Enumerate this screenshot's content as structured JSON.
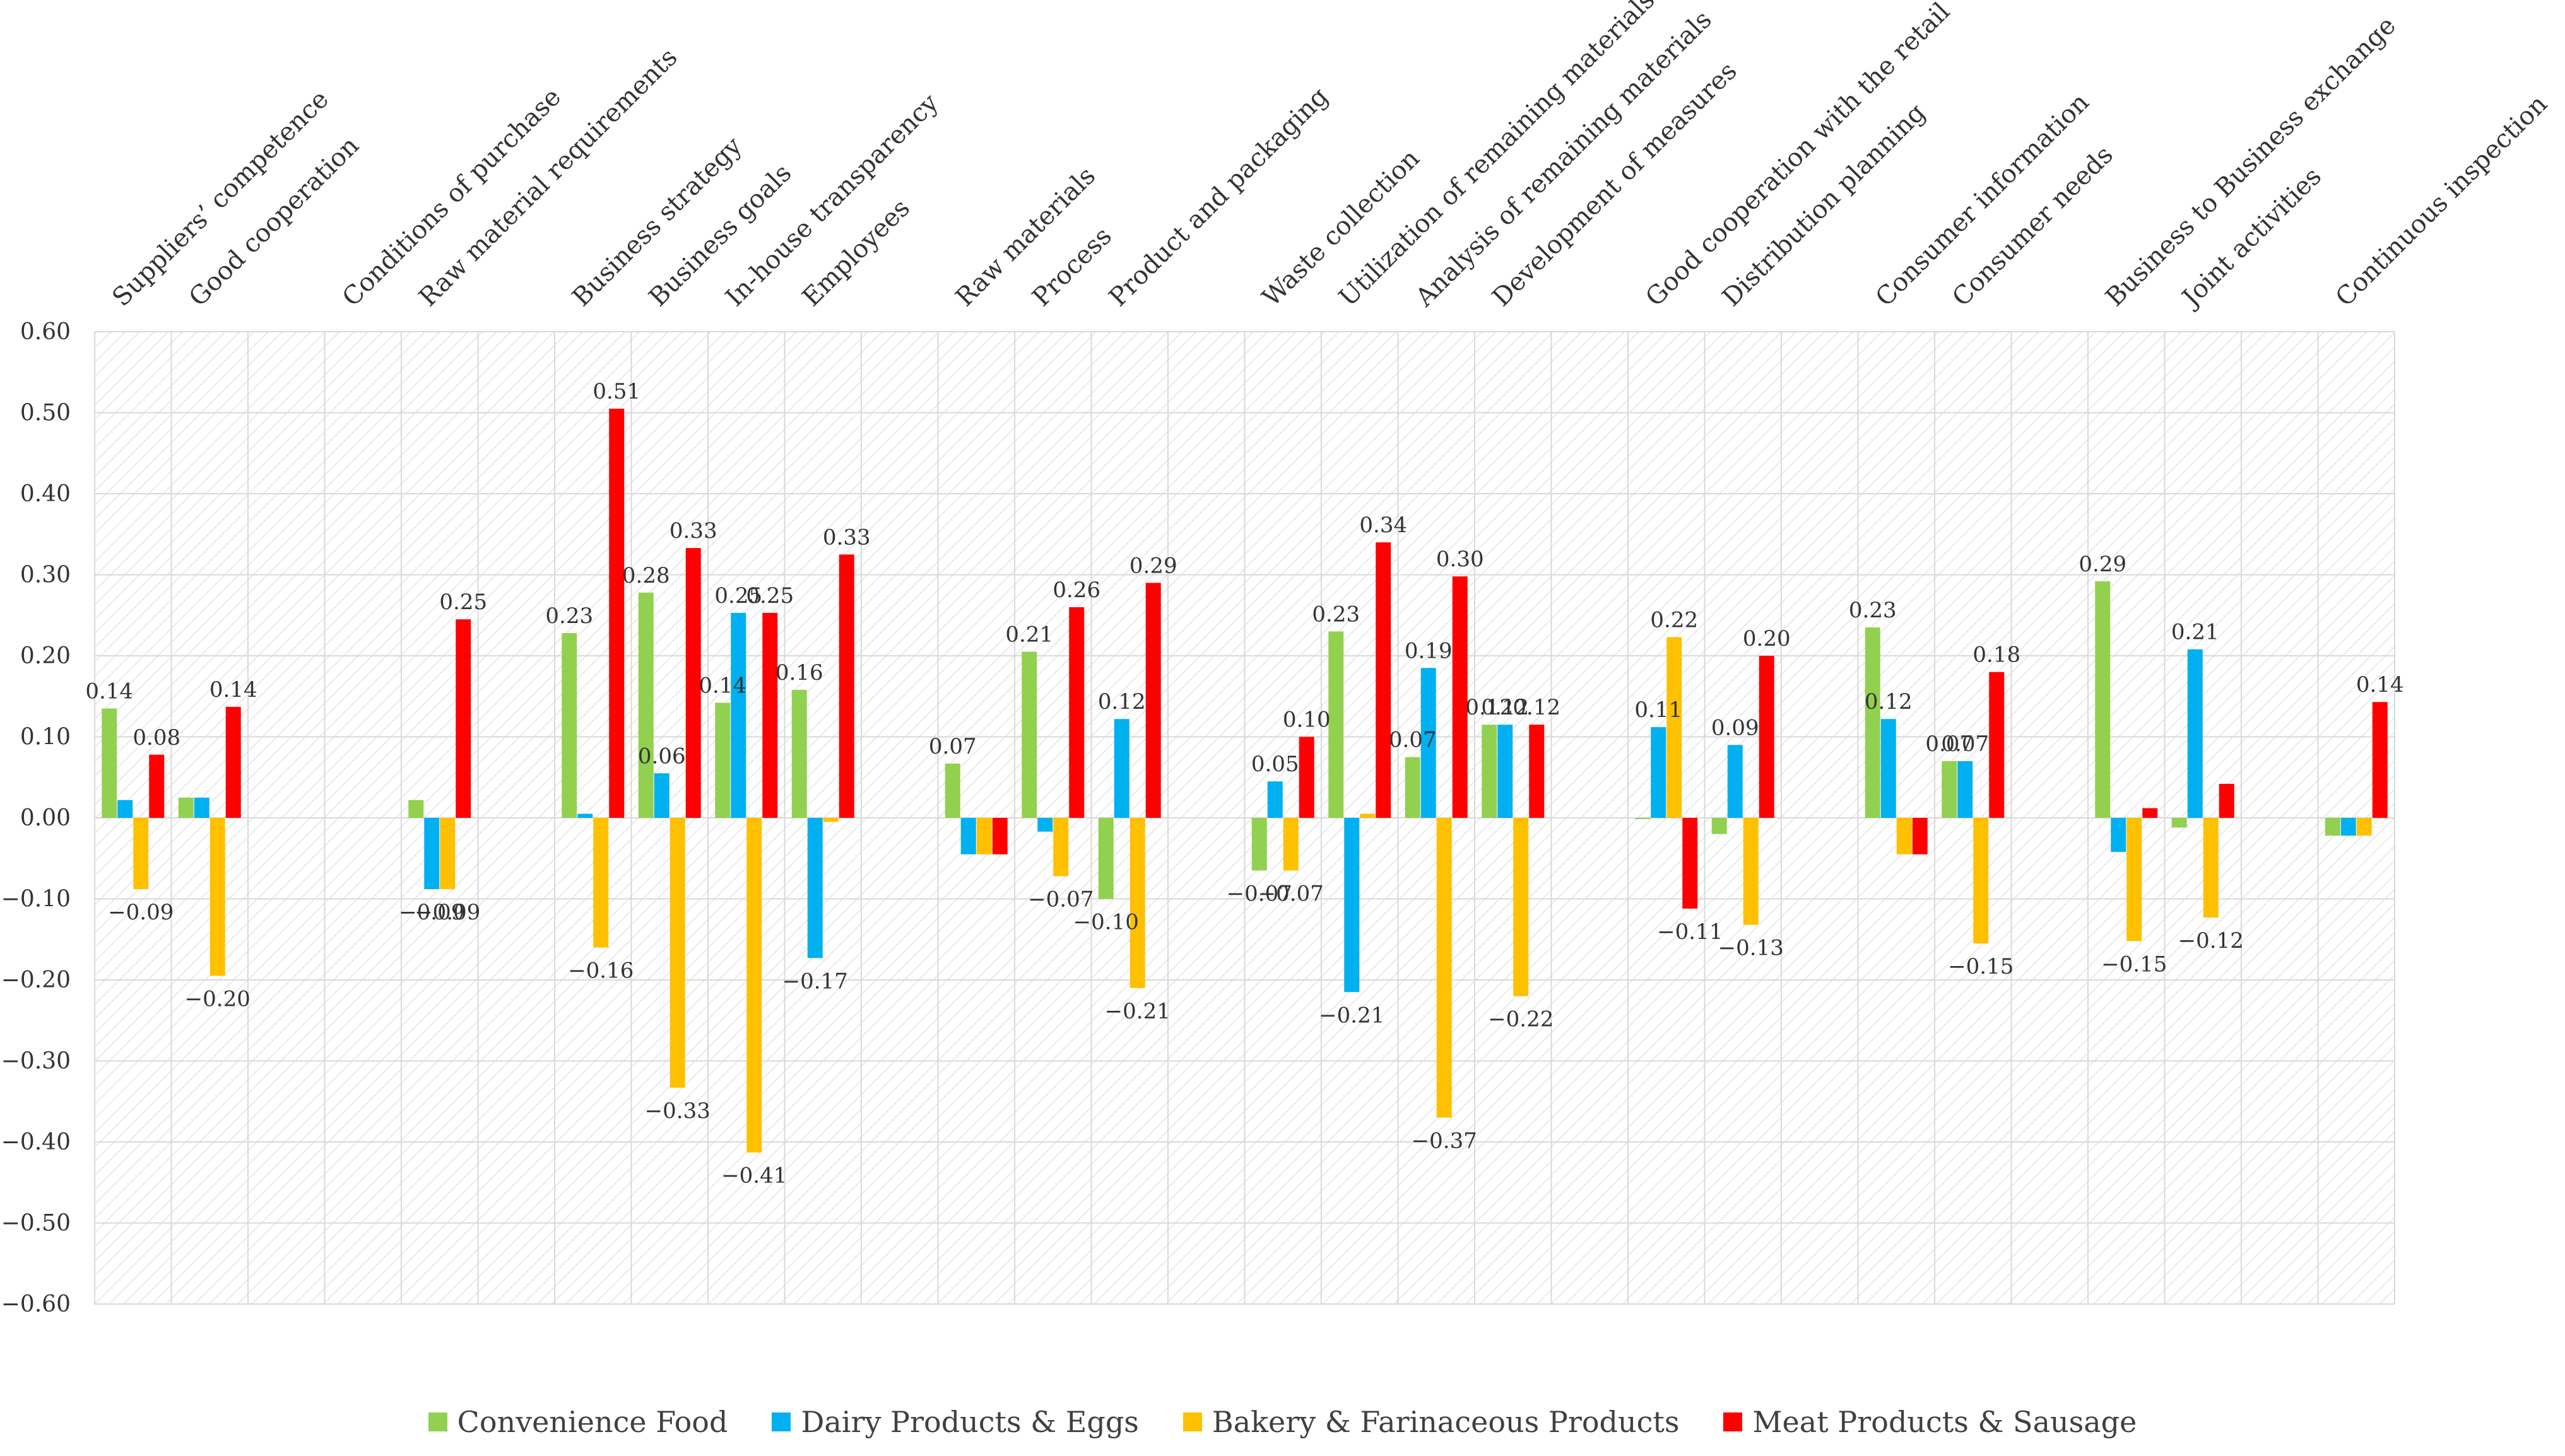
{
  "chart_data": {
    "type": "bar",
    "title": "",
    "xlabel": "",
    "ylabel": "",
    "ylim": [
      -0.6,
      0.6
    ],
    "ytick_labels": [
      "0.60",
      "0.50",
      "0.40",
      "0.30",
      "0.20",
      "0.10",
      "0.00",
      "−0.10",
      "−0.20",
      "−0.30",
      "−0.40",
      "−0.50",
      "−0.60"
    ],
    "categories": [
      "Suppliers’ competence",
      "Good cooperation",
      "",
      "Conditions of purchase",
      "Raw material requirements",
      "",
      "Business strategy",
      "Business goals",
      "In-house transparency",
      "Employees",
      "",
      "Raw materials",
      "Process",
      "Product and packaging",
      "",
      "Waste collection",
      "Utilization of remaining materials",
      "Analysis of remaining materials",
      "Development of measures",
      "",
      "Good cooperation with the retail",
      "Distribution planning",
      "",
      "Consumer information",
      "Consumer needs",
      "",
      "Business to Business exchange",
      "Joint activities",
      "",
      "Continuous inspection"
    ],
    "series": [
      {
        "name": "Convenience Food",
        "color": "#92D050",
        "values": [
          0.135,
          0.025,
          null,
          null,
          0.022,
          null,
          0.228,
          0.278,
          0.142,
          0.158,
          null,
          0.067,
          0.205,
          -0.1,
          null,
          -0.065,
          0.23,
          0.075,
          0.115,
          null,
          0.0,
          -0.02,
          null,
          0.235,
          0.07,
          null,
          0.292,
          -0.012,
          null,
          -0.022
        ]
      },
      {
        "name": "Dairy Products & Eggs",
        "color": "#00B0F0",
        "values": [
          0.022,
          0.025,
          null,
          null,
          -0.088,
          null,
          0.005,
          0.055,
          0.253,
          -0.173,
          null,
          -0.045,
          -0.017,
          0.122,
          null,
          0.045,
          -0.215,
          0.185,
          0.115,
          null,
          0.112,
          0.09,
          null,
          0.122,
          0.07,
          null,
          -0.042,
          0.208,
          null,
          -0.022
        ]
      },
      {
        "name": "Bakery & Farinaceous Products",
        "color": "#FFC000",
        "values": [
          -0.088,
          -0.195,
          null,
          null,
          -0.088,
          null,
          -0.16,
          -0.333,
          -0.413,
          -0.005,
          null,
          -0.045,
          -0.072,
          -0.21,
          null,
          -0.065,
          0.005,
          -0.37,
          -0.22,
          null,
          0.223,
          -0.132,
          null,
          -0.045,
          -0.155,
          null,
          -0.152,
          -0.123,
          null,
          -0.022
        ]
      },
      {
        "name": "Meat Products & Sausage",
        "color": "#FF0000",
        "values": [
          0.078,
          0.137,
          null,
          null,
          0.245,
          null,
          0.505,
          0.333,
          0.253,
          0.325,
          null,
          -0.045,
          0.26,
          0.29,
          null,
          0.1,
          0.34,
          0.298,
          0.115,
          null,
          -0.112,
          0.2,
          null,
          -0.045,
          0.18,
          null,
          0.012,
          0.042,
          null,
          0.143
        ]
      }
    ],
    "data_labels": [
      {
        "cat": 0,
        "s": 0,
        "text": "0.14"
      },
      {
        "cat": 0,
        "s": 2,
        "text": "−0.09"
      },
      {
        "cat": 0,
        "s": 3,
        "text": "0.08"
      },
      {
        "cat": 1,
        "s": 2,
        "text": "−0.20"
      },
      {
        "cat": 1,
        "s": 3,
        "text": "0.14"
      },
      {
        "cat": 4,
        "s": 1,
        "text": "−0.09"
      },
      {
        "cat": 4,
        "s": 2,
        "text": "−0.09"
      },
      {
        "cat": 4,
        "s": 3,
        "text": "0.25"
      },
      {
        "cat": 6,
        "s": 0,
        "text": "0.23"
      },
      {
        "cat": 6,
        "s": 2,
        "text": "−0.16"
      },
      {
        "cat": 6,
        "s": 3,
        "text": "0.51"
      },
      {
        "cat": 7,
        "s": 0,
        "text": "0.28"
      },
      {
        "cat": 7,
        "s": 1,
        "text": "0.06"
      },
      {
        "cat": 7,
        "s": 2,
        "text": "−0.33"
      },
      {
        "cat": 7,
        "s": 3,
        "text": "0.33"
      },
      {
        "cat": 8,
        "s": 0,
        "text": "0.14"
      },
      {
        "cat": 8,
        "s": 1,
        "text": "0.25"
      },
      {
        "cat": 8,
        "s": 2,
        "text": "−0.41"
      },
      {
        "cat": 8,
        "s": 3,
        "text": "0.25"
      },
      {
        "cat": 9,
        "s": 0,
        "text": "0.16"
      },
      {
        "cat": 9,
        "s": 1,
        "text": "−0.17"
      },
      {
        "cat": 9,
        "s": 3,
        "text": "0.33"
      },
      {
        "cat": 11,
        "s": 0,
        "text": "0.07"
      },
      {
        "cat": 12,
        "s": 0,
        "text": "0.21"
      },
      {
        "cat": 12,
        "s": 2,
        "text": "−0.07"
      },
      {
        "cat": 12,
        "s": 3,
        "text": "0.26"
      },
      {
        "cat": 13,
        "s": 0,
        "text": "−0.10"
      },
      {
        "cat": 13,
        "s": 1,
        "text": "0.12"
      },
      {
        "cat": 13,
        "s": 2,
        "text": "−0.21"
      },
      {
        "cat": 13,
        "s": 3,
        "text": "0.29"
      },
      {
        "cat": 15,
        "s": 0,
        "text": "−0.07"
      },
      {
        "cat": 15,
        "s": 1,
        "text": "0.05"
      },
      {
        "cat": 15,
        "s": 2,
        "text": "−0.07"
      },
      {
        "cat": 15,
        "s": 3,
        "text": "0.10"
      },
      {
        "cat": 16,
        "s": 0,
        "text": "0.23"
      },
      {
        "cat": 16,
        "s": 1,
        "text": "−0.21"
      },
      {
        "cat": 16,
        "s": 3,
        "text": "0.34"
      },
      {
        "cat": 17,
        "s": 0,
        "text": "0.07"
      },
      {
        "cat": 17,
        "s": 1,
        "text": "0.19"
      },
      {
        "cat": 17,
        "s": 2,
        "text": "−0.37"
      },
      {
        "cat": 17,
        "s": 3,
        "text": "0.30"
      },
      {
        "cat": 18,
        "s": 0,
        "text": "0.12"
      },
      {
        "cat": 18,
        "s": 1,
        "text": "0.12"
      },
      {
        "cat": 18,
        "s": 2,
        "text": "−0.22"
      },
      {
        "cat": 18,
        "s": 3,
        "text": "0.12"
      },
      {
        "cat": 20,
        "s": 1,
        "text": "0.11"
      },
      {
        "cat": 20,
        "s": 2,
        "text": "0.22"
      },
      {
        "cat": 20,
        "s": 3,
        "text": "−0.11"
      },
      {
        "cat": 21,
        "s": 1,
        "text": "0.09"
      },
      {
        "cat": 21,
        "s": 2,
        "text": "−0.13"
      },
      {
        "cat": 21,
        "s": 3,
        "text": "0.20"
      },
      {
        "cat": 23,
        "s": 0,
        "text": "0.23"
      },
      {
        "cat": 23,
        "s": 1,
        "text": "0.12"
      },
      {
        "cat": 24,
        "s": 0,
        "text": "0.07"
      },
      {
        "cat": 24,
        "s": 1,
        "text": "0.07"
      },
      {
        "cat": 24,
        "s": 2,
        "text": "−0.15"
      },
      {
        "cat": 24,
        "s": 3,
        "text": "0.18"
      },
      {
        "cat": 26,
        "s": 0,
        "text": "0.29"
      },
      {
        "cat": 26,
        "s": 2,
        "text": "−0.15"
      },
      {
        "cat": 27,
        "s": 1,
        "text": "0.21"
      },
      {
        "cat": 27,
        "s": 2,
        "text": "−0.12"
      },
      {
        "cat": 29,
        "s": 3,
        "text": "0.14"
      }
    ],
    "legend_position": "bottom",
    "grid": true
  }
}
